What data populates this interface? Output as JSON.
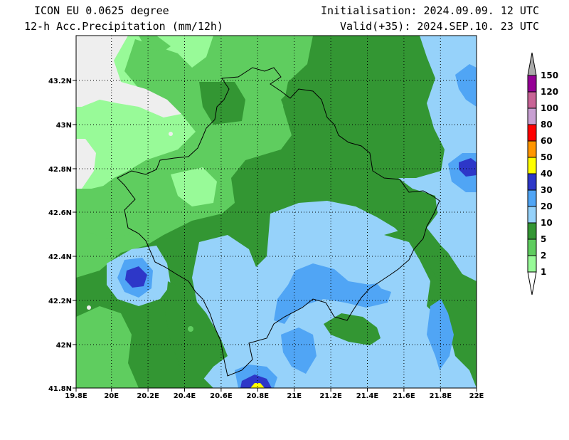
{
  "header": {
    "model": "ICON EU 0.0625 degree",
    "variable": "12-h Acc.Precipitation (mm/12h)",
    "init": "Initialisation: 2024.09.09. 12 UTC",
    "valid": "Valid(+35): 2024.SEP.10. 23 UTC"
  },
  "axes": {
    "lon_ticks": [
      "19.8E",
      "20E",
      "20.2E",
      "20.4E",
      "20.6E",
      "20.8E",
      "21E",
      "21.2E",
      "21.4E",
      "21.6E",
      "21.8E",
      "22E"
    ],
    "lat_ticks": [
      "43.2N",
      "43N",
      "42.8N",
      "42.6N",
      "42.4N",
      "42.2N",
      "42N",
      "41.8N"
    ]
  },
  "legend": {
    "levels": [
      "1",
      "2",
      "5",
      "10",
      "20",
      "30",
      "40",
      "50",
      "60",
      "80",
      "100",
      "120",
      "150"
    ],
    "colors": [
      "#ffffff",
      "#98fa98",
      "#5fcd5f",
      "#339633",
      "#96d2fa",
      "#50a5f5",
      "#2d37c8",
      "#ffff00",
      "#ff9600",
      "#ff0000",
      "#c8a0d2",
      "#c86496",
      "#960096",
      "#aaaaaa"
    ]
  },
  "colors": {
    "light_green": "#98fa98",
    "green": "#5fcd5f",
    "dark_green": "#339633",
    "light_blue": "#96d2fa",
    "blue": "#50a5f5",
    "dark_blue": "#2d37c8",
    "yellow": "#ffff00",
    "gray": "#eeeeee"
  }
}
